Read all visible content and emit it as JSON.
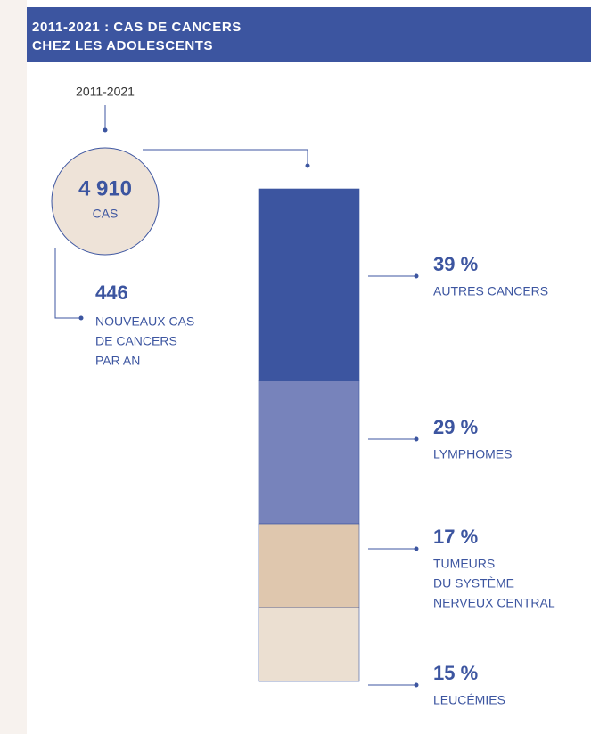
{
  "chart_data": {
    "type": "stacked-column",
    "title": [
      "2011-2021 : CAS DE CANCERS",
      "CHEZ LES ADOLESCENTS"
    ],
    "period": "2011-2021",
    "total": {
      "value": 4910,
      "label": "4 910"
    },
    "total_unit": "CAS",
    "per_year": 446,
    "per_year_label": [
      "NOUVEAUX CAS",
      "DE CANCERS",
      "PAR AN"
    ],
    "ylim": [
      0,
      100
    ],
    "series": [
      {
        "name": [
          "AUTRES CANCERS"
        ],
        "color": "#3c55a0",
        "values": [
          39
        ],
        "value_labels": [
          "39 %"
        ]
      },
      {
        "name": [
          "LYMPHOMES"
        ],
        "color": "#7783bb",
        "values": [
          29
        ],
        "value_labels": [
          "29 %"
        ]
      },
      {
        "name": [
          "TUMEURS",
          "DU SYSTÈME",
          "NERVEUX CENTRAL"
        ],
        "color": "#dfc7ae",
        "values": [
          17
        ],
        "value_labels": [
          "17 %"
        ]
      },
      {
        "name": [
          "LEUCÉMIES"
        ],
        "color": "#ebdfd1",
        "values": [
          15
        ],
        "value_labels": [
          "15 %"
        ]
      }
    ]
  }
}
